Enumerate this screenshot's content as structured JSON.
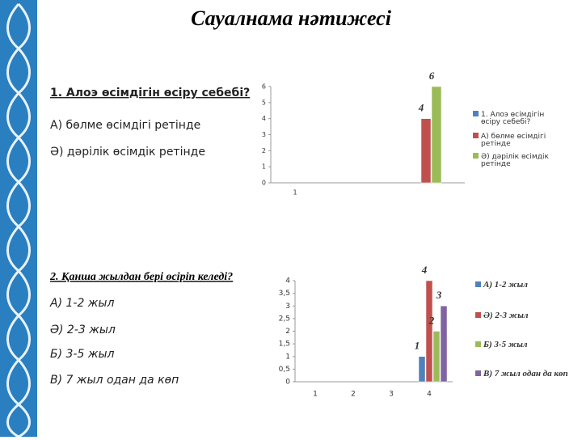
{
  "title": "Сауалнама нәтижесі",
  "question1": {
    "text": "1. Алоэ өсімдігін өсіру себебі?",
    "options": [
      "А) бөлме өсімдігі ретінде",
      "Ә) дәрілік өсімдік ретінде"
    ]
  },
  "question2": {
    "text": "2. Қанша жылдан бері өсіріп келеді?",
    "options": [
      "А) 1-2 жыл",
      "Ә) 2-3 жыл",
      "Б) 3-5 жыл",
      "В) 7 жыл одан да көп"
    ]
  },
  "chart_data": [
    {
      "type": "bar",
      "categories": [
        "1"
      ],
      "ylim": [
        0,
        6
      ],
      "yticks": [
        0,
        1,
        2,
        3,
        4,
        5,
        6
      ],
      "series": [
        {
          "name": "1. Алоэ өсімдігін өсіру себебі?",
          "color": "#4f81bd",
          "values": [
            null
          ]
        },
        {
          "name": "А) бөлме өсімдігі ретінде",
          "color": "#c0504d",
          "values": [
            4
          ]
        },
        {
          "name": "Ә) дәрілік өсімдік ретінде",
          "color": "#9bbb59",
          "values": [
            6
          ]
        }
      ]
    },
    {
      "type": "bar",
      "categories": [
        "1",
        "2",
        "3",
        "4"
      ],
      "ylim": [
        0,
        4
      ],
      "yticks": [
        0,
        {
          "value": 0.5,
          "label": "0,5"
        },
        1,
        {
          "value": 1.5,
          "label": "1,5"
        },
        2,
        {
          "value": 2.5,
          "label": "2,5"
        },
        3,
        {
          "value": 3.5,
          "label": "3,5"
        },
        4
      ],
      "series": [
        {
          "name": "А) 1-2 жыл",
          "color": "#4f81bd",
          "values": [
            null,
            null,
            null,
            1
          ]
        },
        {
          "name": "Ә) 2-3 жыл",
          "color": "#c0504d",
          "values": [
            null,
            null,
            null,
            4
          ]
        },
        {
          "name": "Б) 3-5 жыл",
          "color": "#9bbb59",
          "values": [
            null,
            null,
            null,
            2
          ]
        },
        {
          "name": "В) 7 жыл одан да көп",
          "color": "#8064a2",
          "values": [
            null,
            null,
            null,
            3
          ]
        }
      ]
    }
  ]
}
